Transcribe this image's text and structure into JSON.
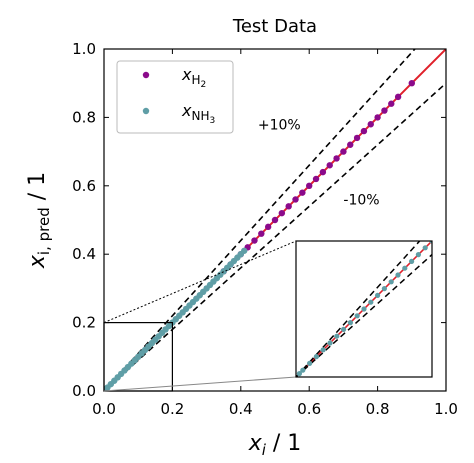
{
  "chart_data": {
    "type": "scatter",
    "title": "Test Data",
    "xlabel": "x_i / 1",
    "ylabel": "x_i,pred / 1",
    "xlim": [
      0.0,
      1.0
    ],
    "ylim": [
      0.0,
      1.0
    ],
    "xticks": [
      "0.0",
      "0.2",
      "0.4",
      "0.6",
      "0.8",
      "1.0"
    ],
    "yticks": [
      "0.0",
      "0.2",
      "0.4",
      "0.6",
      "0.8",
      "1.0"
    ],
    "grid": false,
    "legend_position": "top-left",
    "annotations": [
      "+10%",
      "-10%"
    ],
    "parity_line": {
      "color": "#e0202a",
      "from": [
        0,
        0
      ],
      "to": [
        1,
        1
      ]
    },
    "tolerance_lines": {
      "upper_factor": 1.1,
      "lower_factor": 0.9,
      "style": "dashed",
      "color": "#000000"
    },
    "series": [
      {
        "name": "x_H2",
        "color": "#8b0a8b",
        "x": [
          0.35,
          0.37,
          0.4,
          0.42,
          0.44,
          0.46,
          0.48,
          0.5,
          0.52,
          0.54,
          0.56,
          0.58,
          0.6,
          0.62,
          0.64,
          0.66,
          0.68,
          0.7,
          0.72,
          0.74,
          0.76,
          0.78,
          0.8,
          0.82,
          0.84,
          0.86,
          0.9
        ],
        "y": [
          0.35,
          0.37,
          0.4,
          0.42,
          0.44,
          0.46,
          0.48,
          0.5,
          0.52,
          0.54,
          0.56,
          0.58,
          0.6,
          0.62,
          0.64,
          0.66,
          0.68,
          0.7,
          0.72,
          0.74,
          0.76,
          0.78,
          0.8,
          0.82,
          0.84,
          0.86,
          0.9
        ]
      },
      {
        "name": "x_NH3",
        "color": "#5f9ea6",
        "x": [
          0.005,
          0.01,
          0.02,
          0.03,
          0.04,
          0.05,
          0.06,
          0.07,
          0.08,
          0.09,
          0.1,
          0.11,
          0.12,
          0.13,
          0.14,
          0.15,
          0.16,
          0.17,
          0.18,
          0.19,
          0.2,
          0.21,
          0.22,
          0.23,
          0.24,
          0.25,
          0.26,
          0.27,
          0.28,
          0.29,
          0.3,
          0.31,
          0.32,
          0.33,
          0.34,
          0.35,
          0.36,
          0.37,
          0.38,
          0.39,
          0.4,
          0.41
        ],
        "y": [
          0.005,
          0.01,
          0.02,
          0.03,
          0.04,
          0.05,
          0.06,
          0.07,
          0.08,
          0.09,
          0.1,
          0.11,
          0.12,
          0.13,
          0.14,
          0.15,
          0.16,
          0.17,
          0.18,
          0.19,
          0.2,
          0.21,
          0.22,
          0.23,
          0.24,
          0.25,
          0.26,
          0.27,
          0.28,
          0.29,
          0.3,
          0.31,
          0.32,
          0.33,
          0.34,
          0.35,
          0.36,
          0.37,
          0.38,
          0.39,
          0.4,
          0.41
        ]
      }
    ],
    "inset": {
      "source_xlim": [
        0.0,
        0.2
      ],
      "source_ylim": [
        0.0,
        0.2
      ],
      "xlim": [
        0.0,
        0.2
      ],
      "ylim": [
        0.0,
        0.2
      ]
    }
  }
}
